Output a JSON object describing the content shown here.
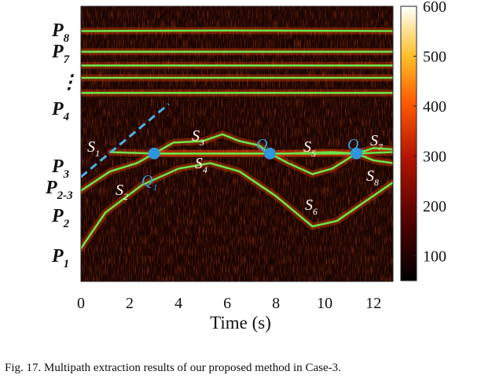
{
  "chart_data": {
    "type": "heatmap",
    "title": "",
    "xlabel": "Time (s)",
    "ylabel": "",
    "xlim": [
      0,
      12.8
    ],
    "x_ticks": [
      "0",
      "2",
      "4",
      "6",
      "8",
      "10",
      "12"
    ],
    "colorbar": {
      "min": 50,
      "max": 600,
      "ticks": [
        "100",
        "200",
        "300",
        "400",
        "500",
        "600"
      ]
    },
    "path_labels": [
      {
        "base": "P",
        "sub": "8",
        "color": "#111111"
      },
      {
        "base": "P",
        "sub": "7",
        "color": "#111111"
      },
      {
        "base": "⋮",
        "sub": "",
        "color": "#111111"
      },
      {
        "base": "P",
        "sub": "4",
        "color": "#111111"
      },
      {
        "base": "P",
        "sub": "3",
        "color": "#111111"
      },
      {
        "base": "P",
        "sub": "2-3",
        "color": "#3aa0e0"
      },
      {
        "base": "P",
        "sub": "2",
        "color": "#111111"
      },
      {
        "base": "P",
        "sub": "1",
        "color": "#111111"
      }
    ],
    "segment_labels": [
      {
        "base": "S",
        "sub": "1"
      },
      {
        "base": "S",
        "sub": "2"
      },
      {
        "base": "S",
        "sub": "3"
      },
      {
        "base": "S",
        "sub": "4"
      },
      {
        "base": "S",
        "sub": "5"
      },
      {
        "base": "S",
        "sub": "6"
      },
      {
        "base": "S",
        "sub": "7"
      },
      {
        "base": "S",
        "sub": "8"
      }
    ],
    "intersections": [
      {
        "base": "Q",
        "sub": "1",
        "t": 3.0
      },
      {
        "base": "Q",
        "sub": "2",
        "t": 7.75
      },
      {
        "base": "Q",
        "sub": "3",
        "t": 11.3
      }
    ],
    "extracted_paths": [
      {
        "name": "P8",
        "points": [
          [
            0,
            0.91
          ],
          [
            6,
            0.912
          ],
          [
            12.8,
            0.91
          ]
        ]
      },
      {
        "name": "P7",
        "points": [
          [
            0,
            0.835
          ],
          [
            12.8,
            0.835
          ]
        ]
      },
      {
        "name": "P6",
        "points": [
          [
            0,
            0.785
          ],
          [
            12.8,
            0.785
          ]
        ]
      },
      {
        "name": "P5",
        "points": [
          [
            0,
            0.74
          ],
          [
            12.8,
            0.74
          ]
        ]
      },
      {
        "name": "P4",
        "points": [
          [
            0,
            0.685
          ],
          [
            12.8,
            0.685
          ]
        ]
      },
      {
        "name": "P3",
        "points": [
          [
            1.2,
            0.47
          ],
          [
            3.0,
            0.465
          ],
          [
            7.75,
            0.465
          ],
          [
            11.3,
            0.465
          ],
          [
            12.8,
            0.47
          ]
        ]
      },
      {
        "name": "S3",
        "points": [
          [
            3.0,
            0.465
          ],
          [
            3.8,
            0.505
          ],
          [
            5.0,
            0.51
          ],
          [
            5.8,
            0.535
          ],
          [
            6.5,
            0.51
          ],
          [
            7.3,
            0.495
          ],
          [
            7.75,
            0.465
          ]
        ]
      },
      {
        "name": "S4",
        "points": [
          [
            3.0,
            0.465
          ],
          [
            5.0,
            0.465
          ],
          [
            7.75,
            0.465
          ]
        ]
      },
      {
        "name": "S5",
        "points": [
          [
            7.75,
            0.465
          ],
          [
            8.5,
            0.465
          ],
          [
            10.3,
            0.47
          ],
          [
            11.3,
            0.465
          ]
        ]
      },
      {
        "name": "S6",
        "points": [
          [
            7.75,
            0.465
          ],
          [
            8.5,
            0.43
          ],
          [
            9.5,
            0.39
          ],
          [
            10.3,
            0.41
          ],
          [
            11.3,
            0.465
          ]
        ]
      },
      {
        "name": "S7",
        "points": [
          [
            11.3,
            0.465
          ],
          [
            12.0,
            0.485
          ],
          [
            12.8,
            0.48
          ]
        ]
      },
      {
        "name": "S8",
        "points": [
          [
            11.3,
            0.465
          ],
          [
            12.0,
            0.44
          ],
          [
            12.8,
            0.43
          ]
        ]
      },
      {
        "name": "P2",
        "points": [
          [
            0,
            0.33
          ],
          [
            1.2,
            0.4
          ],
          [
            2.3,
            0.43
          ],
          [
            3.0,
            0.465
          ]
        ]
      },
      {
        "name": "P1",
        "points": [
          [
            0,
            0.12
          ],
          [
            1.0,
            0.25
          ],
          [
            2.5,
            0.35
          ],
          [
            4.0,
            0.41
          ],
          [
            5.3,
            0.43
          ],
          [
            6.5,
            0.4
          ],
          [
            8.0,
            0.31
          ],
          [
            9.5,
            0.2
          ],
          [
            10.5,
            0.22
          ],
          [
            12.8,
            0.36
          ]
        ]
      }
    ],
    "dashed_path": {
      "name": "P2-3",
      "points": [
        [
          0,
          0.38
        ],
        [
          3.6,
          0.645
        ]
      ]
    }
  },
  "caption": "Fig. 17.  Multipath extraction results of our proposed method in Case-3.",
  "colors": {
    "path_line": "#6ee24a",
    "marker": "#2e95dc",
    "dashed": "#4fb0e8"
  }
}
